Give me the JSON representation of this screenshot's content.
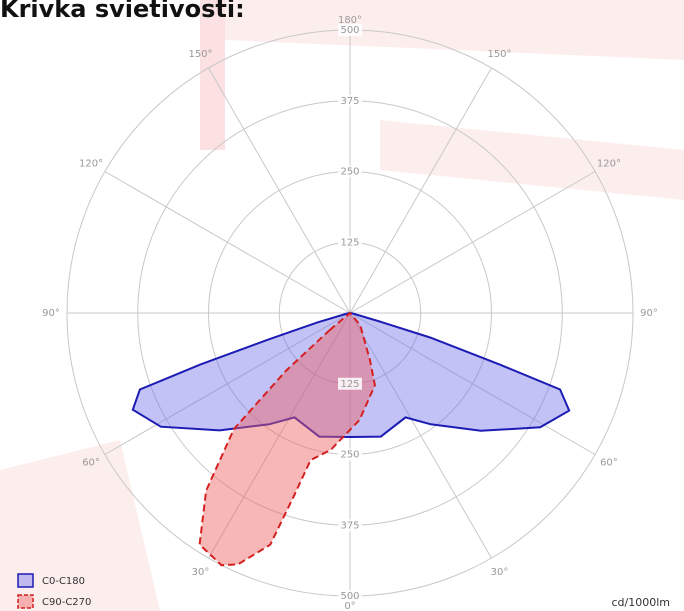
{
  "chart_data": {
    "type": "polar",
    "title": "Krivka svietivosti:",
    "unit_label": "cd/1000lm",
    "rlim": [
      0,
      500
    ],
    "rticks": [
      125,
      250,
      375,
      500
    ],
    "angle_ticks": [
      {
        "value": 0,
        "label": "0°"
      },
      {
        "value": 30,
        "label": "30°"
      },
      {
        "value": 60,
        "label": "60°"
      },
      {
        "value": 90,
        "label": "90°"
      },
      {
        "value": 120,
        "label": "120°"
      },
      {
        "value": 150,
        "label": "150°"
      },
      {
        "value": 180,
        "label": "180°"
      }
    ],
    "grid": true,
    "legend": "lower left",
    "series": [
      {
        "name": "C0-C180",
        "color": "#1c1cb4",
        "fill": "rgba(110,110,235,0.42)",
        "dash": false,
        "angles": [
          -90,
          -80,
          -74,
          -72,
          -71,
          -70,
          -66,
          -59,
          -48,
          -36,
          -28,
          -14,
          0,
          14,
          28,
          36,
          48,
          59,
          66,
          70,
          71,
          73,
          74,
          80,
          90
        ],
        "values": [
          0,
          5,
          60,
          150,
          280,
          395,
          420,
          390,
          310,
          243,
          209,
          225,
          219,
          225,
          209,
          243,
          311,
          392,
          424,
          395,
          281,
          148,
          60,
          5,
          0
        ]
      },
      {
        "name": "C90-C270",
        "color": "#d42020",
        "fill": "rgba(240,95,95,0.45)",
        "dash": true,
        "angles": [
          -50,
          -48,
          -45,
          -39,
          -33,
          -27,
          -24,
          -19,
          -17,
          -15,
          -8,
          5,
          19,
          23,
          40,
          50
        ],
        "values": [
          46,
          152,
          290,
          404,
          488,
          500,
          486,
          433,
          336,
          269,
          244,
          190,
          135,
          90,
          28,
          0
        ]
      }
    ]
  }
}
